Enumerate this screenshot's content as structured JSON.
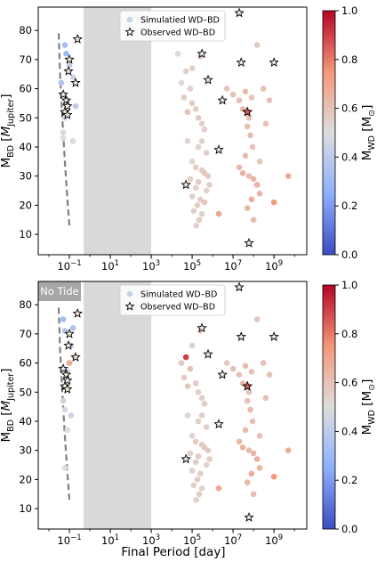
{
  "figure": {
    "xlabel": "Final Period [day]",
    "no_tide_label": "No Tide"
  },
  "chart_data": [
    {
      "type": "scatter",
      "title": "",
      "xlabel": "",
      "ylabel": "M_BD [M_Jupiter]",
      "xscale": "log",
      "xlim": [
        0.003,
        40000000000
      ],
      "ylim": [
        3,
        88
      ],
      "x_ticks": [
        "10^-1",
        "10^1",
        "10^3",
        "10^5",
        "10^7",
        "10^9"
      ],
      "y_ticks": [
        10,
        20,
        30,
        40,
        50,
        60,
        70,
        80
      ],
      "legend": {
        "placement": "top-center",
        "entries": [
          "Simulatied WD–BD",
          "Observed WD–BD"
        ]
      },
      "shaded_region_x": [
        0.5,
        1000
      ],
      "dashed_curve": [
        [
          0.03,
          79
        ],
        [
          0.035,
          65
        ],
        [
          0.045,
          50
        ],
        [
          0.06,
          35
        ],
        [
          0.08,
          22
        ],
        [
          0.1,
          13
        ]
      ],
      "simulated": [
        [
          0.04,
          62,
          0.35
        ],
        [
          0.07,
          72,
          0.3
        ],
        [
          0.06,
          75,
          0.32
        ],
        [
          0.1,
          68,
          0.42
        ],
        [
          0.15,
          64,
          0.45
        ],
        [
          0.2,
          54,
          0.4
        ],
        [
          0.08,
          56,
          0.38
        ],
        [
          0.06,
          50,
          0.45
        ],
        [
          0.05,
          45,
          0.48
        ],
        [
          0.05,
          43,
          0.5
        ],
        [
          0.15,
          42,
          0.48
        ],
        [
          20000,
          72,
          0.52
        ],
        [
          50000,
          66,
          0.55
        ],
        [
          30000,
          62,
          0.52
        ],
        [
          80000,
          60,
          0.55
        ],
        [
          40000,
          57,
          0.56
        ],
        [
          100000,
          55,
          0.57
        ],
        [
          150000,
          53,
          0.56
        ],
        [
          60000,
          52,
          0.6
        ],
        [
          200000,
          50,
          0.56
        ],
        [
          300000,
          48,
          0.55
        ],
        [
          400000,
          46,
          0.55
        ],
        [
          60000,
          42,
          0.53
        ],
        [
          300000,
          42,
          0.55
        ],
        [
          200000,
          40,
          0.54
        ],
        [
          500000,
          38,
          0.55
        ],
        [
          100000,
          35,
          0.53
        ],
        [
          150000,
          33,
          0.56
        ],
        [
          300000,
          32,
          0.55
        ],
        [
          400000,
          31,
          0.58
        ],
        [
          600000,
          30,
          0.57
        ],
        [
          80000,
          29,
          0.55
        ],
        [
          200000,
          28,
          0.56
        ],
        [
          150000,
          26,
          0.55
        ],
        [
          500000,
          25,
          0.54
        ],
        [
          100000,
          23,
          0.55
        ],
        [
          250000,
          22,
          0.56
        ],
        [
          180000,
          20,
          0.57
        ],
        [
          120000,
          18,
          0.55
        ],
        [
          300000,
          17,
          0.54
        ],
        [
          220000,
          15,
          0.56
        ],
        [
          160000,
          13,
          0.55
        ],
        [
          400000,
          21,
          0.58
        ],
        [
          700000,
          27,
          0.56
        ],
        [
          100000,
          67,
          0.55
        ],
        [
          250000,
          71,
          0.56
        ],
        [
          5000000,
          60,
          0.58
        ],
        [
          10000000,
          58,
          0.6
        ],
        [
          20000000,
          56,
          0.6
        ],
        [
          40000000,
          59,
          0.62
        ],
        [
          80000000,
          57,
          0.6
        ],
        [
          30000000,
          53,
          0.62
        ],
        [
          60000000,
          50,
          0.6
        ],
        [
          50000000,
          47,
          0.6
        ],
        [
          70000000,
          44,
          0.62
        ],
        [
          90000000,
          40,
          0.6
        ],
        [
          40000000,
          37,
          0.62
        ],
        [
          20000000,
          33,
          0.63
        ],
        [
          30000000,
          31,
          0.65
        ],
        [
          60000000,
          30,
          0.62
        ],
        [
          100000000,
          29,
          0.64
        ],
        [
          150000000,
          27,
          0.66
        ],
        [
          200000000,
          24,
          0.65
        ],
        [
          80000000,
          22,
          0.68
        ],
        [
          50000000,
          19,
          0.64
        ],
        [
          100000000,
          15,
          0.62
        ],
        [
          150000000,
          75,
          0.58
        ],
        [
          300000000,
          60,
          0.6
        ],
        [
          600000000,
          56,
          0.6
        ],
        [
          5000000000,
          30,
          0.68
        ],
        [
          1000000000,
          21,
          0.75
        ],
        [
          2000000,
          17,
          0.7
        ],
        [
          400000000,
          48,
          0.6
        ],
        [
          200000000,
          35,
          0.6
        ]
      ],
      "observed": [
        [
          0.07,
          56
        ],
        [
          0.08,
          54
        ],
        [
          0.06,
          52
        ],
        [
          0.08,
          51
        ],
        [
          0.05,
          58
        ],
        [
          0.1,
          70
        ],
        [
          0.09,
          66
        ],
        [
          0.2,
          62
        ],
        [
          0.25,
          77
        ],
        [
          50000,
          27
        ],
        [
          300000,
          72
        ],
        [
          600000,
          63
        ],
        [
          3000000,
          56
        ],
        [
          2000000,
          39
        ],
        [
          20000000,
          86
        ],
        [
          25000000,
          69
        ],
        [
          50000000,
          52
        ],
        [
          1000000000,
          69
        ],
        [
          60000000,
          7
        ]
      ],
      "observed_highlight": [
        50000000,
        52,
        0.85
      ]
    },
    {
      "type": "scatter",
      "title": "",
      "xlabel": "Final Period [day]",
      "ylabel": "M_BD [M_Jupiter]",
      "xscale": "log",
      "xlim": [
        0.003,
        40000000000
      ],
      "ylim": [
        3,
        88
      ],
      "x_ticks": [
        "10^-1",
        "10^1",
        "10^3",
        "10^5",
        "10^7",
        "10^9"
      ],
      "y_ticks": [
        10,
        20,
        30,
        40,
        50,
        60,
        70,
        80
      ],
      "legend": {
        "placement": "top-center",
        "entries": [
          "Simulated WD–BD",
          "Observed WD–BD"
        ]
      },
      "shaded_region_x": [
        0.5,
        1000
      ],
      "dashed_curve": [
        [
          0.03,
          79
        ],
        [
          0.035,
          65
        ],
        [
          0.045,
          50
        ],
        [
          0.06,
          35
        ],
        [
          0.08,
          22
        ],
        [
          0.1,
          13
        ]
      ],
      "simulated": [
        [
          0.05,
          75,
          0.32
        ],
        [
          0.06,
          71,
          0.35
        ],
        [
          0.12,
          66,
          0.38
        ],
        [
          0.15,
          72,
          0.35
        ],
        [
          0.18,
          62,
          0.62
        ],
        [
          0.1,
          60,
          0.7
        ],
        [
          0.08,
          57,
          0.4
        ],
        [
          0.06,
          52,
          0.42
        ],
        [
          0.05,
          47,
          0.45
        ],
        [
          0.06,
          44,
          0.48
        ],
        [
          0.12,
          42,
          0.45
        ],
        [
          0.06,
          24,
          0.5
        ],
        [
          0.08,
          37,
          0.5
        ],
        [
          50000,
          62,
          0.9
        ],
        [
          100000,
          66,
          0.55
        ],
        [
          30000,
          60,
          0.58
        ],
        [
          80000,
          58,
          0.6
        ],
        [
          40000,
          55,
          0.56
        ],
        [
          150000,
          53,
          0.56
        ],
        [
          60000,
          52,
          0.58
        ],
        [
          200000,
          50,
          0.55
        ],
        [
          300000,
          48,
          0.55
        ],
        [
          400000,
          46,
          0.56
        ],
        [
          60000,
          42,
          0.54
        ],
        [
          300000,
          42,
          0.55
        ],
        [
          200000,
          40,
          0.55
        ],
        [
          500000,
          38,
          0.55
        ],
        [
          100000,
          35,
          0.54
        ],
        [
          150000,
          33,
          0.56
        ],
        [
          300000,
          32,
          0.56
        ],
        [
          400000,
          31,
          0.57
        ],
        [
          600000,
          30,
          0.57
        ],
        [
          80000,
          29,
          0.55
        ],
        [
          200000,
          28,
          0.56
        ],
        [
          150000,
          26,
          0.55
        ],
        [
          500000,
          25,
          0.54
        ],
        [
          100000,
          23,
          0.55
        ],
        [
          250000,
          22,
          0.56
        ],
        [
          180000,
          20,
          0.57
        ],
        [
          120000,
          18,
          0.55
        ],
        [
          300000,
          17,
          0.54
        ],
        [
          220000,
          15,
          0.56
        ],
        [
          160000,
          13,
          0.55
        ],
        [
          250000,
          71,
          0.56
        ],
        [
          700000,
          27,
          0.56
        ],
        [
          5000000,
          60,
          0.58
        ],
        [
          10000000,
          58,
          0.6
        ],
        [
          20000000,
          56,
          0.6
        ],
        [
          40000000,
          59,
          0.62
        ],
        [
          80000000,
          57,
          0.6
        ],
        [
          30000000,
          53,
          0.62
        ],
        [
          60000000,
          50,
          0.6
        ],
        [
          50000000,
          47,
          0.6
        ],
        [
          70000000,
          44,
          0.62
        ],
        [
          90000000,
          40,
          0.6
        ],
        [
          40000000,
          37,
          0.62
        ],
        [
          20000000,
          33,
          0.63
        ],
        [
          30000000,
          31,
          0.65
        ],
        [
          60000000,
          30,
          0.62
        ],
        [
          100000000,
          29,
          0.64
        ],
        [
          150000000,
          27,
          0.66
        ],
        [
          200000000,
          24,
          0.65
        ],
        [
          80000000,
          22,
          0.68
        ],
        [
          50000000,
          19,
          0.64
        ],
        [
          100000000,
          15,
          0.62
        ],
        [
          150000000,
          75,
          0.58
        ],
        [
          300000000,
          60,
          0.6
        ],
        [
          600000000,
          56,
          0.6
        ],
        [
          5000000000,
          30,
          0.68
        ],
        [
          1000000000,
          21,
          0.75
        ],
        [
          2000000,
          17,
          0.7
        ],
        [
          400000000,
          48,
          0.6
        ],
        [
          200000000,
          35,
          0.6
        ]
      ],
      "observed": [
        [
          0.07,
          56
        ],
        [
          0.08,
          54
        ],
        [
          0.06,
          52
        ],
        [
          0.08,
          51
        ],
        [
          0.05,
          58
        ],
        [
          0.1,
          70
        ],
        [
          0.09,
          66
        ],
        [
          0.2,
          62
        ],
        [
          0.25,
          77
        ],
        [
          50000,
          27
        ],
        [
          300000,
          72
        ],
        [
          600000,
          63
        ],
        [
          3000000,
          56
        ],
        [
          2000000,
          39
        ],
        [
          20000000,
          86
        ],
        [
          25000000,
          69
        ],
        [
          50000000,
          52
        ],
        [
          1000000000,
          69
        ],
        [
          60000000,
          7
        ]
      ],
      "observed_highlight": [
        50000000,
        52,
        0.85
      ]
    }
  ],
  "colorbar": {
    "label": "M_WD [M_sun]",
    "ticks": [
      "0.0",
      "0.2",
      "0.4",
      "0.6",
      "0.8",
      "1.0"
    ],
    "range": [
      0,
      1
    ],
    "colormap": "coolwarm"
  }
}
